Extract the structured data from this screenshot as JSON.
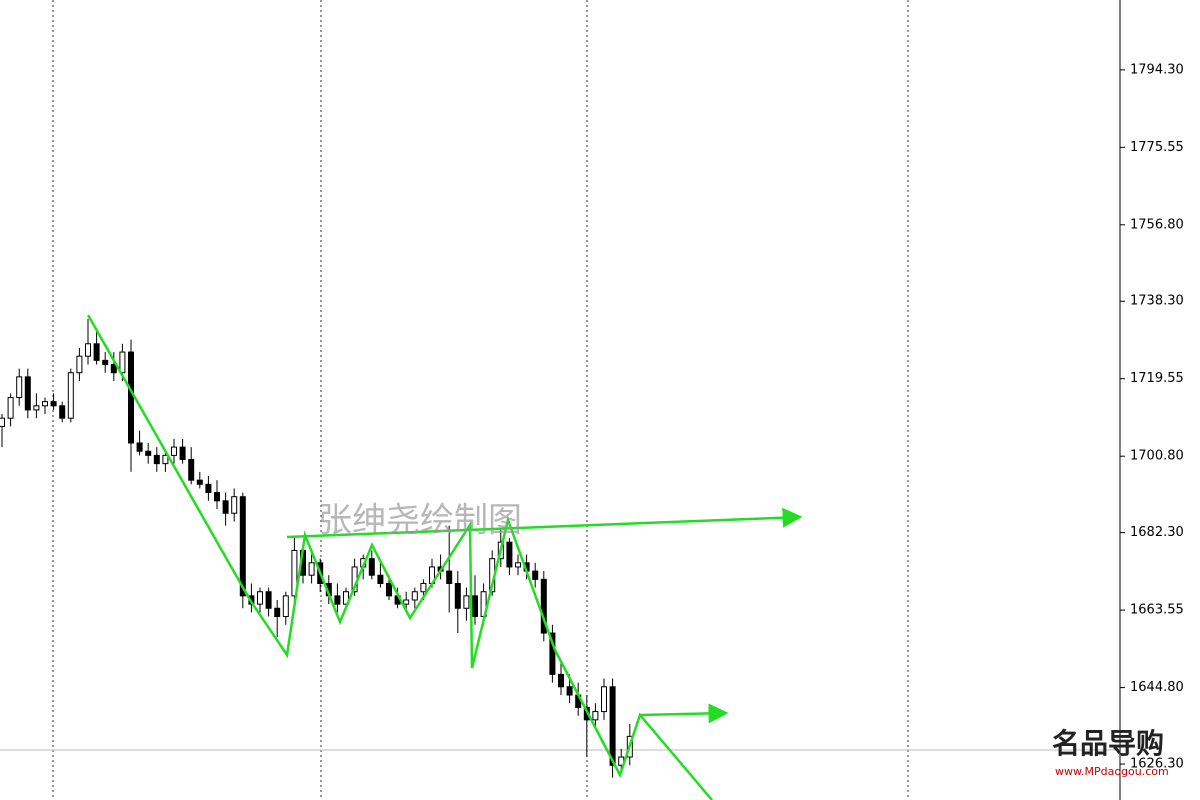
{
  "chart_data": {
    "type": "candlestick",
    "categories": [
      null,
      null,
      null,
      null,
      null,
      null,
      null,
      null,
      null,
      null,
      null,
      null,
      null,
      null,
      null,
      null,
      null,
      null,
      null,
      null,
      null,
      null,
      null,
      null,
      null,
      null,
      null,
      null,
      null,
      null,
      null,
      null,
      null,
      null,
      null,
      null,
      null,
      null,
      null,
      null,
      null,
      null,
      null,
      null,
      null,
      null,
      null,
      null,
      null,
      null,
      null,
      null,
      null,
      null,
      null,
      null,
      null,
      null,
      null,
      null,
      null,
      null,
      null,
      null,
      null,
      null,
      null,
      null,
      null,
      null,
      null,
      null,
      null,
      null
    ],
    "open": [
      1708,
      1710,
      1715,
      1720,
      1712,
      1713,
      1714,
      1713,
      1710,
      1721,
      1725,
      1728,
      1724,
      1723,
      1721,
      1726,
      1704,
      1702,
      1701,
      1699,
      1701,
      1703,
      1700,
      1695,
      1694,
      1692,
      1690,
      1687,
      1691,
      1667,
      1665,
      1668,
      1664,
      1662,
      1667,
      1678,
      1672,
      1675,
      1670,
      1667,
      1665,
      1668,
      1674,
      1676,
      1672,
      1670,
      1667,
      1665,
      1666,
      1668,
      1670,
      1674,
      1673,
      1670,
      1664,
      1667,
      1662,
      1668,
      1676,
      1680,
      1674,
      1675,
      1673,
      1671,
      1658,
      1648,
      1645,
      1643,
      1640,
      1637,
      1639,
      1645,
      1626,
      1628
    ],
    "high": [
      1711,
      1716,
      1722,
      1722,
      1716,
      1715,
      1716,
      1714,
      1722,
      1727,
      1734,
      1731,
      1726,
      1726,
      1728,
      1729,
      1707,
      1704,
      1703,
      1702,
      1705,
      1705,
      1703,
      1697,
      1696,
      1695,
      1692,
      1693,
      1692,
      1670,
      1669,
      1669,
      1666,
      1668,
      1681,
      1680,
      1677,
      1676,
      1672,
      1670,
      1669,
      1676,
      1677,
      1678,
      1675,
      1672,
      1669,
      1668,
      1669,
      1671,
      1676,
      1677,
      1684,
      1673,
      1669,
      1672,
      1670,
      1678,
      1683,
      1681,
      1677,
      1677,
      1675,
      1673,
      1660,
      1651,
      1648,
      1646,
      1643,
      1641,
      1647,
      1647,
      1630,
      1636
    ],
    "low": [
      1703,
      1708,
      1713,
      1710,
      1710,
      1711,
      1712,
      1709,
      1709,
      1719,
      1723,
      1723,
      1721,
      1719,
      1719,
      1697,
      1701,
      1699,
      1697,
      1697,
      1699,
      1699,
      1694,
      1693,
      1690,
      1688,
      1684,
      1685,
      1664,
      1663,
      1663,
      1662,
      1657,
      1660,
      1665,
      1670,
      1670,
      1668,
      1665,
      1663,
      1664,
      1667,
      1671,
      1671,
      1669,
      1666,
      1664,
      1663,
      1664,
      1666,
      1669,
      1671,
      1663,
      1658,
      1661,
      1660,
      1660,
      1667,
      1674,
      1672,
      1672,
      1671,
      1669,
      1656,
      1646,
      1643,
      1641,
      1638,
      1628,
      1635,
      1637,
      1623,
      1624,
      1626
    ],
    "close": [
      1710,
      1715,
      1720,
      1712,
      1713,
      1714,
      1713,
      1710,
      1721,
      1725,
      1728,
      1724,
      1723,
      1721,
      1726,
      1704,
      1702,
      1701,
      1699,
      1701,
      1703,
      1700,
      1695,
      1694,
      1692,
      1690,
      1687,
      1691,
      1667,
      1665,
      1668,
      1664,
      1662,
      1667,
      1678,
      1672,
      1675,
      1670,
      1667,
      1665,
      1668,
      1674,
      1676,
      1672,
      1670,
      1667,
      1665,
      1666,
      1668,
      1670,
      1674,
      1673,
      1670,
      1664,
      1667,
      1662,
      1668,
      1676,
      1680,
      1674,
      1675,
      1673,
      1671,
      1658,
      1648,
      1645,
      1643,
      1640,
      1637,
      1639,
      1645,
      1626,
      1628,
      1633
    ],
    "up_color": "#ffffff",
    "down_color": "#000000",
    "line_color": "#22dd22",
    "ylim": [
      1617.6,
      1811.2
    ],
    "yticks": [
      {
        "value": 1794.3,
        "label": "1794.30"
      },
      {
        "value": 1775.55,
        "label": "1775.55"
      },
      {
        "value": 1756.8,
        "label": "1756.80"
      },
      {
        "value": 1738.3,
        "label": "1738.30"
      },
      {
        "value": 1719.55,
        "label": "1719.55"
      },
      {
        "value": 1700.8,
        "label": "1700.80"
      },
      {
        "value": 1682.3,
        "label": "1682.30"
      },
      {
        "value": 1663.55,
        "label": "1663.55"
      },
      {
        "value": 1644.8,
        "label": "1644.80"
      },
      {
        "value": 1626.3,
        "label": "1626.30"
      }
    ],
    "annotations": [
      "张绅尧绘制图",
      "名品导购",
      "www.MPdaogou.com"
    ]
  }
}
